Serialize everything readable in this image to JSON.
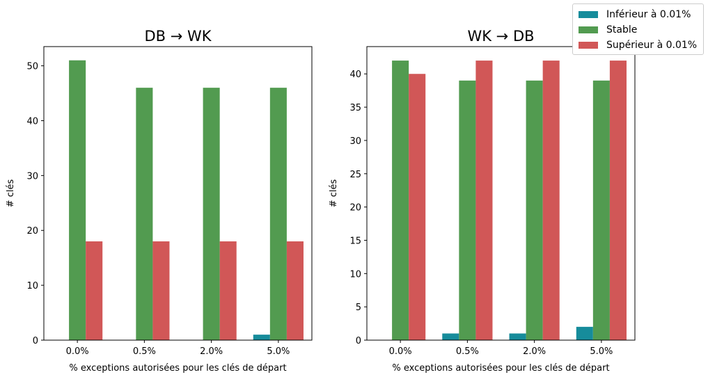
{
  "colors": {
    "inferieur": "#168c9b",
    "stable": "#529b50",
    "superieur": "#d15757"
  },
  "legend": [
    {
      "label": "Inférieur à 0.01%",
      "color_key": "inferieur"
    },
    {
      "label": "Stable",
      "color_key": "stable"
    },
    {
      "label": "Supérieur à 0.01%",
      "color_key": "superieur"
    }
  ],
  "chart_data": [
    {
      "type": "bar",
      "title": "DB → WK",
      "xlabel": "% exceptions autorisées pour les clés de départ",
      "ylabel": "# clés",
      "categories": [
        "0.0%",
        "0.5%",
        "2.0%",
        "5.0%"
      ],
      "ylim": [
        0,
        53.5
      ],
      "yticks": [
        0,
        10,
        20,
        30,
        40,
        50
      ],
      "grid": false,
      "series": [
        {
          "name": "Inférieur à 0.01%",
          "color_key": "inferieur",
          "values": [
            0,
            0,
            0,
            1
          ]
        },
        {
          "name": "Stable",
          "color_key": "stable",
          "values": [
            51,
            46,
            46,
            46
          ]
        },
        {
          "name": "Supérieur à 0.01%",
          "color_key": "superieur",
          "values": [
            18,
            18,
            18,
            18
          ]
        }
      ]
    },
    {
      "type": "bar",
      "title": "WK → DB",
      "xlabel": "% exceptions autorisées pour les clés de départ",
      "ylabel": "# clés",
      "categories": [
        "0.0%",
        "0.5%",
        "2.0%",
        "5.0%"
      ],
      "ylim": [
        0,
        44.1
      ],
      "yticks": [
        0,
        5,
        10,
        15,
        20,
        25,
        30,
        35,
        40
      ],
      "grid": false,
      "series": [
        {
          "name": "Inférieur à 0.01%",
          "color_key": "inferieur",
          "values": [
            0,
            1,
            1,
            2
          ]
        },
        {
          "name": "Stable",
          "color_key": "stable",
          "values": [
            42,
            39,
            39,
            39
          ]
        },
        {
          "name": "Supérieur à 0.01%",
          "color_key": "superieur",
          "values": [
            40,
            42,
            42,
            42
          ]
        }
      ]
    }
  ]
}
